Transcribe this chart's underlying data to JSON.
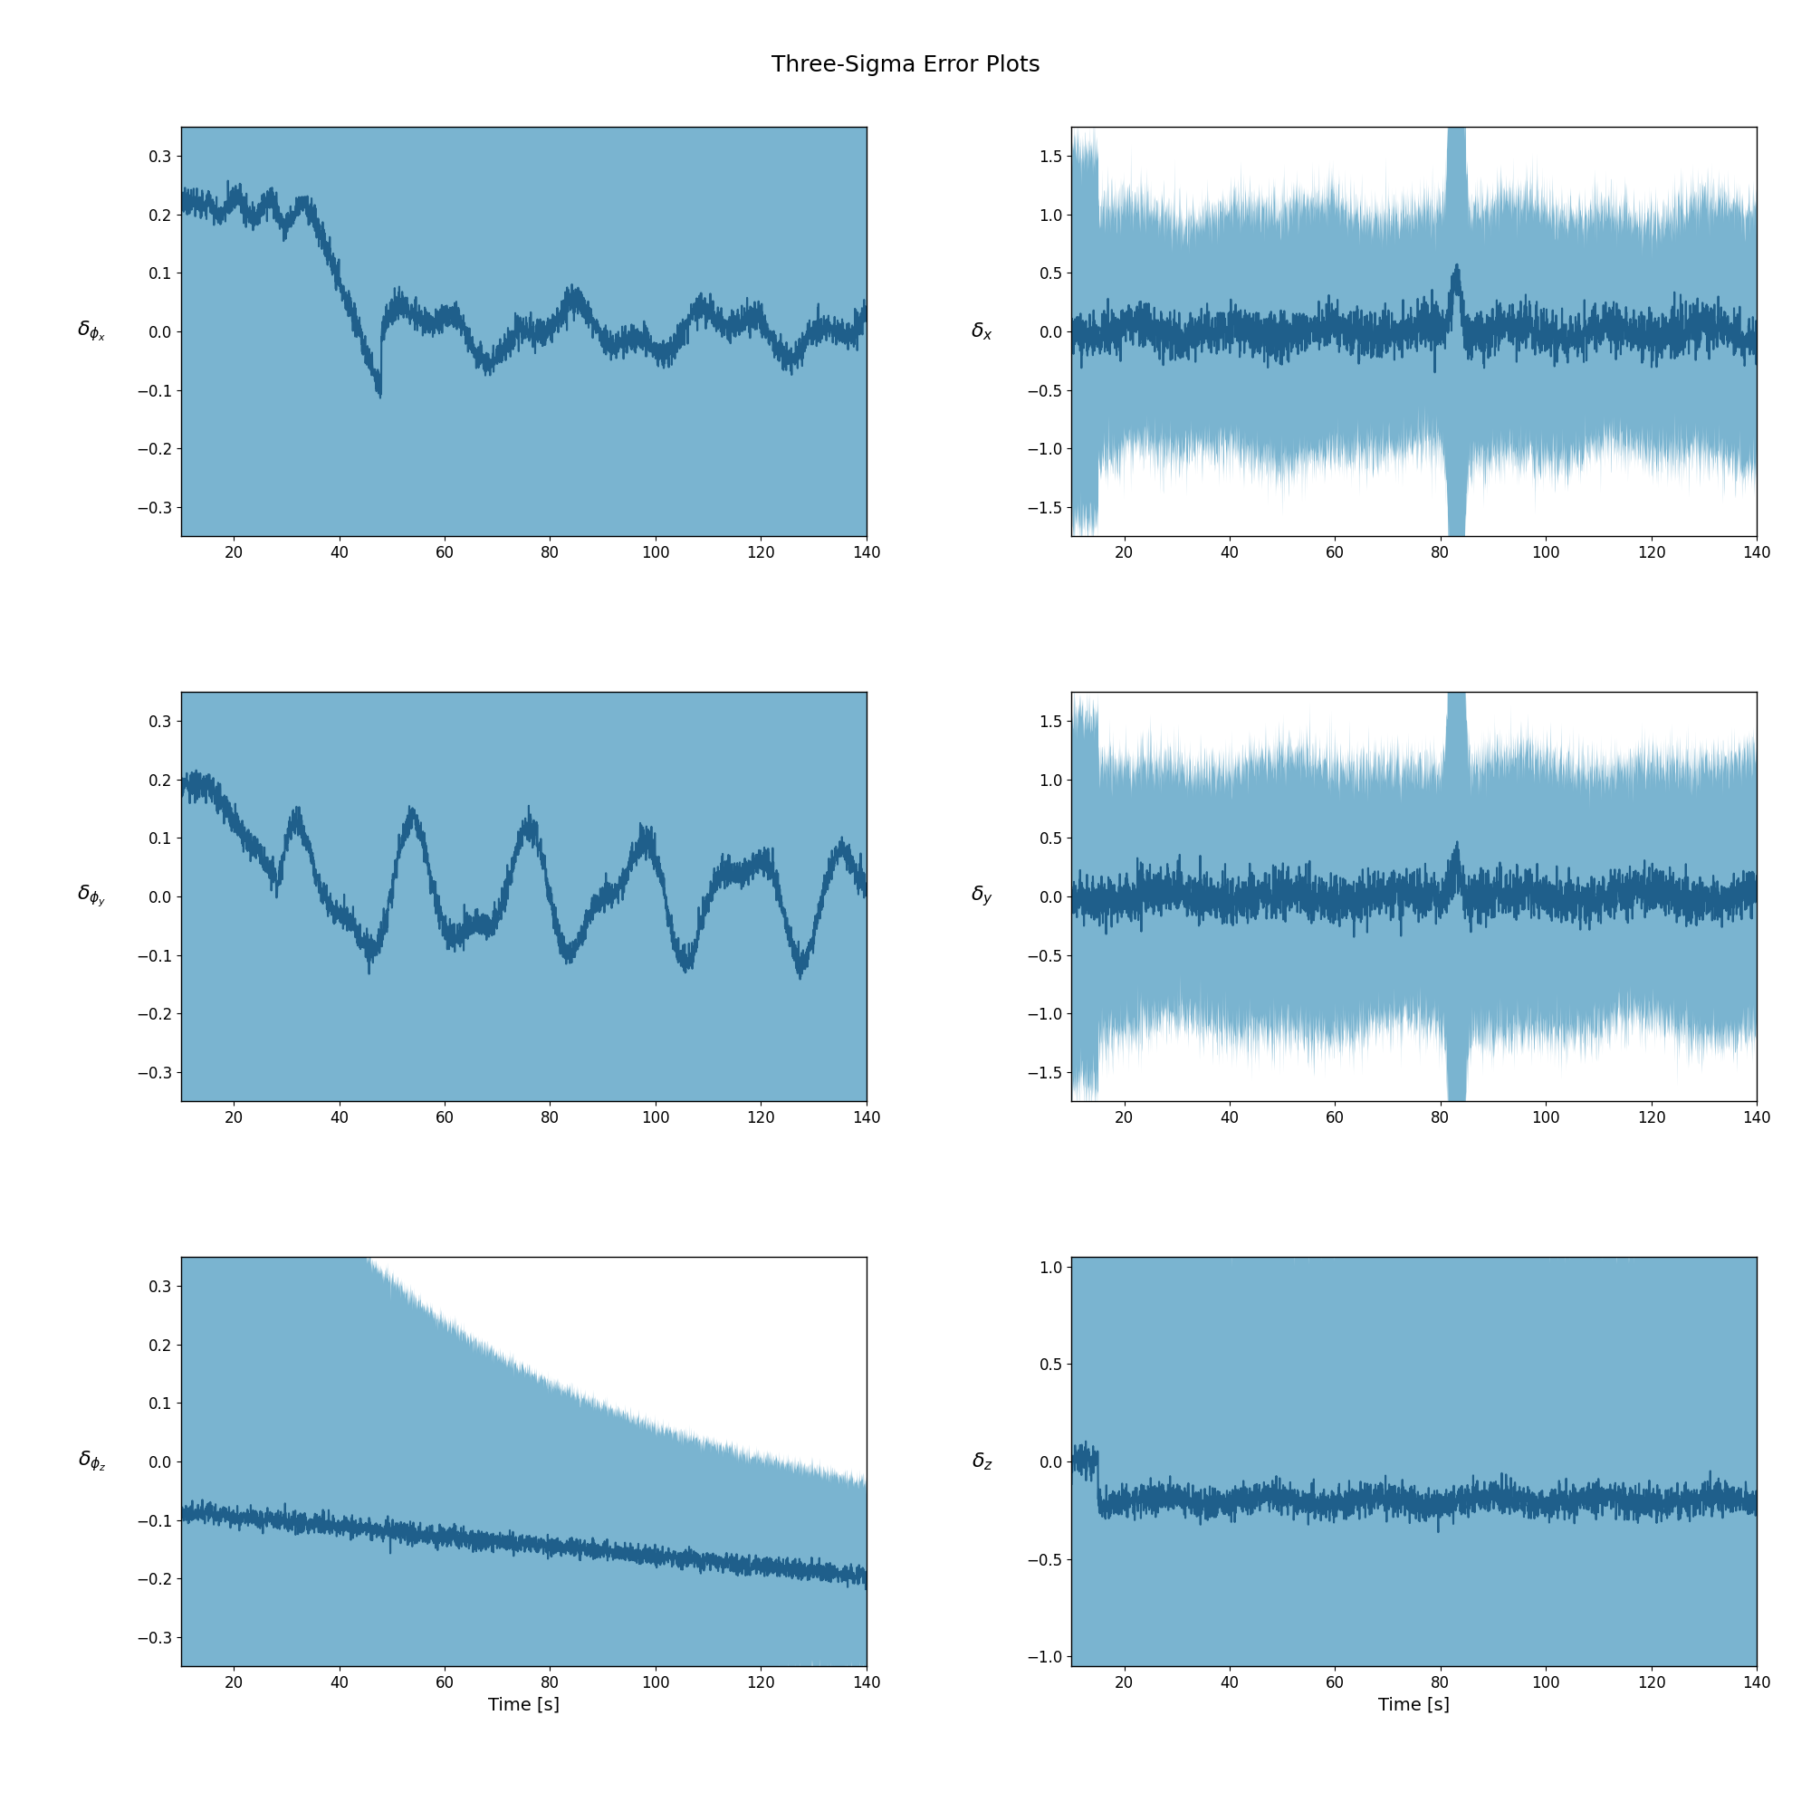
{
  "title": "Three-Sigma Error Plots",
  "title_fontsize": 18,
  "subplots": [
    {
      "ylabel": "$\\delta_{\\phi_x}$",
      "ylim": [
        -0.35,
        0.35
      ],
      "yticks": [
        -0.3,
        -0.2,
        -0.1,
        0.0,
        0.1,
        0.2,
        0.3
      ],
      "xlim": [
        10,
        140
      ],
      "xticks": [
        20,
        40,
        60,
        80,
        100,
        120,
        140
      ],
      "xlabel": ""
    },
    {
      "ylabel": "$\\delta_x$",
      "ylim": [
        -1.75,
        1.75
      ],
      "yticks": [
        -1.5,
        -1.0,
        -0.5,
        0.0,
        0.5,
        1.0,
        1.5
      ],
      "xlim": [
        10,
        140
      ],
      "xticks": [
        20,
        40,
        60,
        80,
        100,
        120,
        140
      ],
      "xlabel": ""
    },
    {
      "ylabel": "$\\delta_{\\phi_y}$",
      "ylim": [
        -0.35,
        0.35
      ],
      "yticks": [
        -0.3,
        -0.2,
        -0.1,
        0.0,
        0.1,
        0.2,
        0.3
      ],
      "xlim": [
        10,
        140
      ],
      "xticks": [
        20,
        40,
        60,
        80,
        100,
        120,
        140
      ],
      "xlabel": ""
    },
    {
      "ylabel": "$\\delta_y$",
      "ylim": [
        -1.75,
        1.75
      ],
      "yticks": [
        -1.5,
        -1.0,
        -0.5,
        0.0,
        0.5,
        1.0,
        1.5
      ],
      "xlim": [
        10,
        140
      ],
      "xticks": [
        20,
        40,
        60,
        80,
        100,
        120,
        140
      ],
      "xlabel": ""
    },
    {
      "ylabel": "$\\delta_{\\phi_z}$",
      "ylim": [
        -0.35,
        0.35
      ],
      "yticks": [
        -0.3,
        -0.2,
        -0.1,
        0.0,
        0.1,
        0.2,
        0.3
      ],
      "xlim": [
        10,
        140
      ],
      "xticks": [
        20,
        40,
        60,
        80,
        100,
        120,
        140
      ],
      "xlabel": "Time [s]"
    },
    {
      "ylabel": "$\\delta_z$",
      "ylim": [
        -1.05,
        1.05
      ],
      "yticks": [
        -1.0,
        -0.5,
        0.0,
        0.5,
        1.0
      ],
      "xlim": [
        10,
        140
      ],
      "xticks": [
        20,
        40,
        60,
        80,
        100,
        120,
        140
      ],
      "xlabel": "Time [s]"
    }
  ],
  "fill_color": "#7ab4d0",
  "line_color": "#1f5f8b",
  "line_width": 1.5,
  "fill_alpha": 1.0
}
